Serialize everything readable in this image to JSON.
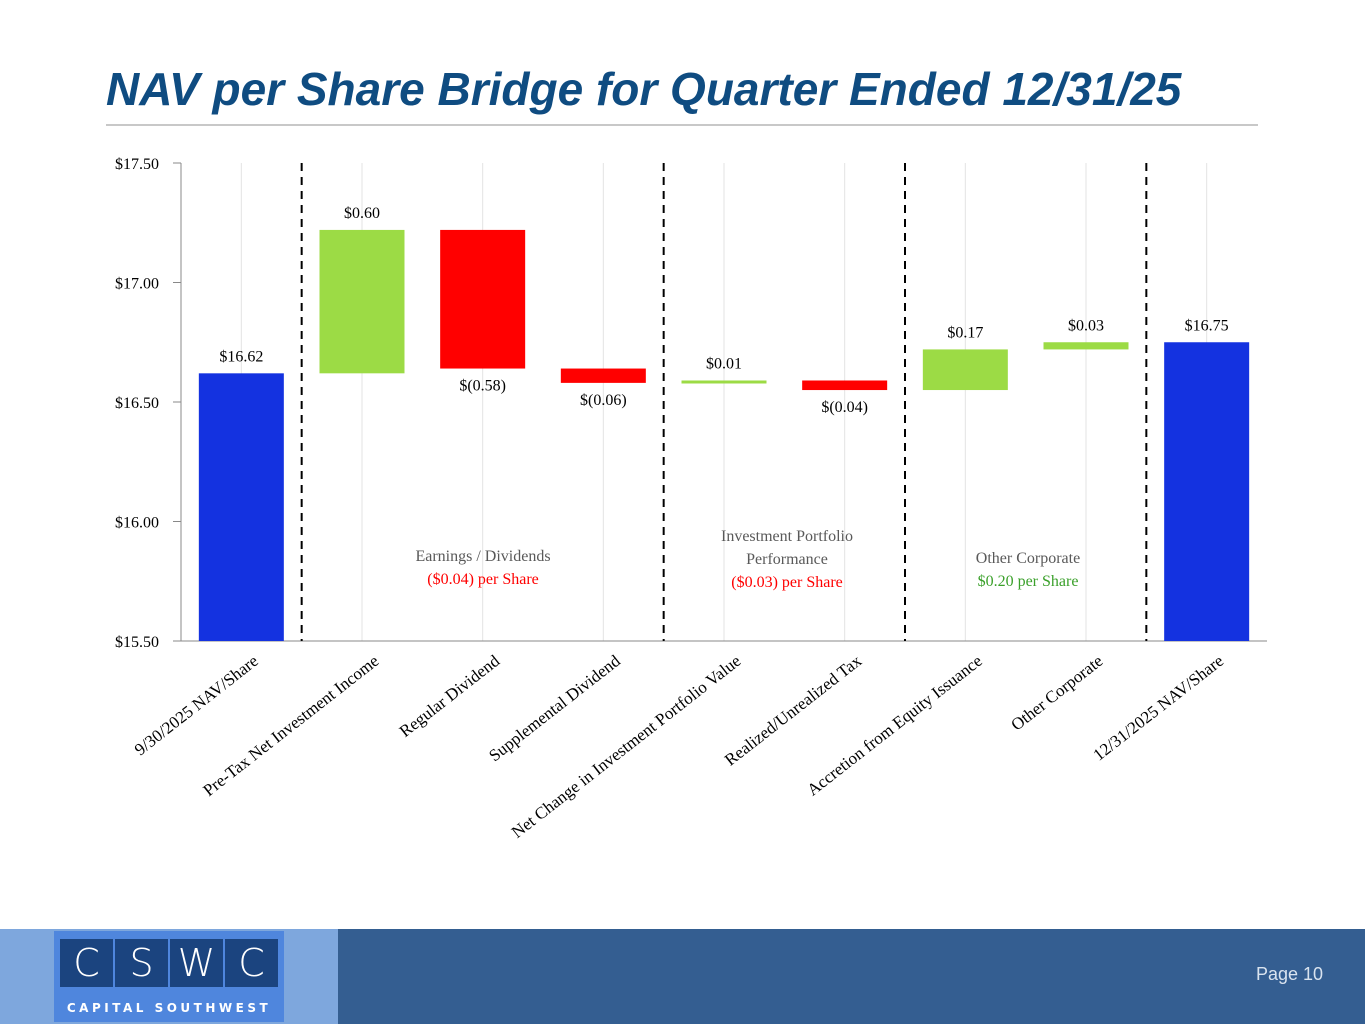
{
  "title": "NAV per Share Bridge for Quarter Ended 12/31/25",
  "footer": {
    "logo_letters": [
      "C",
      "S",
      "W",
      "C"
    ],
    "logo_sub": "CAPITAL SOUTHWEST",
    "page": "Page 10"
  },
  "chart_data": {
    "type": "waterfall",
    "categories": [
      "9/30/2025 NAV/Share",
      "Pre-Tax Net Investment Income",
      "Regular Dividend",
      "Supplemental Dividend",
      "Net Change in Investment Portfolio Value",
      "Realized/Unrealized Tax",
      "Accretion from Equity Issuance",
      "Other Corporate",
      "12/31/2025 NAV/Share"
    ],
    "values": [
      16.62,
      0.6,
      -0.58,
      -0.06,
      0.01,
      -0.04,
      0.17,
      0.03,
      16.75
    ],
    "kinds": [
      "total",
      "delta",
      "delta",
      "delta",
      "delta",
      "delta",
      "delta",
      "delta",
      "total"
    ],
    "data_labels": [
      "$16.62",
      "$0.60",
      "$(0.58)",
      "$(0.06)",
      "$0.01",
      "$(0.04)",
      "$0.17",
      "$0.03",
      "$16.75"
    ],
    "ylim": [
      15.5,
      17.5
    ],
    "yticks": [
      15.5,
      16.0,
      16.5,
      17.0,
      17.5
    ],
    "ytick_labels": [
      "$15.50",
      "$16.00",
      "$16.50",
      "$17.00",
      "$17.50"
    ],
    "grid": "vertical",
    "colors": {
      "total": "#1432e0",
      "increase": "#9cdb45",
      "decrease": "#ff0000"
    },
    "separators_after": [
      0,
      3,
      5,
      7
    ],
    "groups": [
      {
        "label": "Earnings / Dividends",
        "summary": "($0.04) per Share",
        "color": "#ff0000",
        "between": [
          1,
          3
        ]
      },
      {
        "label": "Investment Portfolio Performance",
        "summary": "($0.03) per Share",
        "color": "#ff0000",
        "between": [
          4,
          5
        ]
      },
      {
        "label": "Other Corporate",
        "summary": "$0.20 per Share",
        "color": "#3aa02a",
        "between": [
          6,
          7
        ]
      }
    ]
  }
}
